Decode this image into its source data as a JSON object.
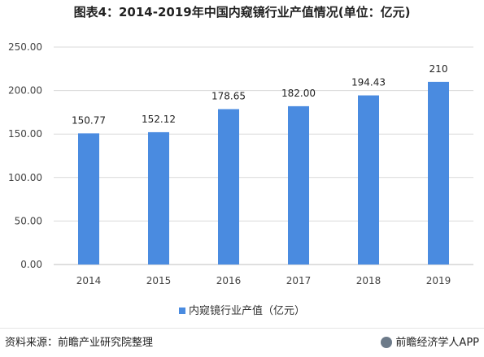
{
  "title": "图表4：2014-2019年中国内窥镜行业产值情况(单位：亿元)",
  "colors": {
    "bar": "#4a8be0"
  },
  "chart_data": {
    "type": "bar",
    "categories": [
      "2014",
      "2015",
      "2016",
      "2017",
      "2018",
      "2019"
    ],
    "series": [
      {
        "name": "内窥镜行业产值（亿元）",
        "values": [
          150.77,
          152.12,
          178.65,
          182.0,
          194.43,
          210
        ]
      }
    ],
    "data_labels": [
      "150.77",
      "152.12",
      "178.65",
      "182.00",
      "194.43",
      "210"
    ],
    "ylim": [
      0,
      250
    ],
    "yticks": [
      "0.00",
      "50.00",
      "100.00",
      "150.00",
      "200.00",
      "250.00"
    ],
    "grid": true,
    "legend_position": "bottom"
  },
  "footer": {
    "source": "资料来源：前瞻产业研究院整理",
    "brand": "前瞻经济学人APP",
    "brand_icon": "qianzhan-logo-icon"
  }
}
